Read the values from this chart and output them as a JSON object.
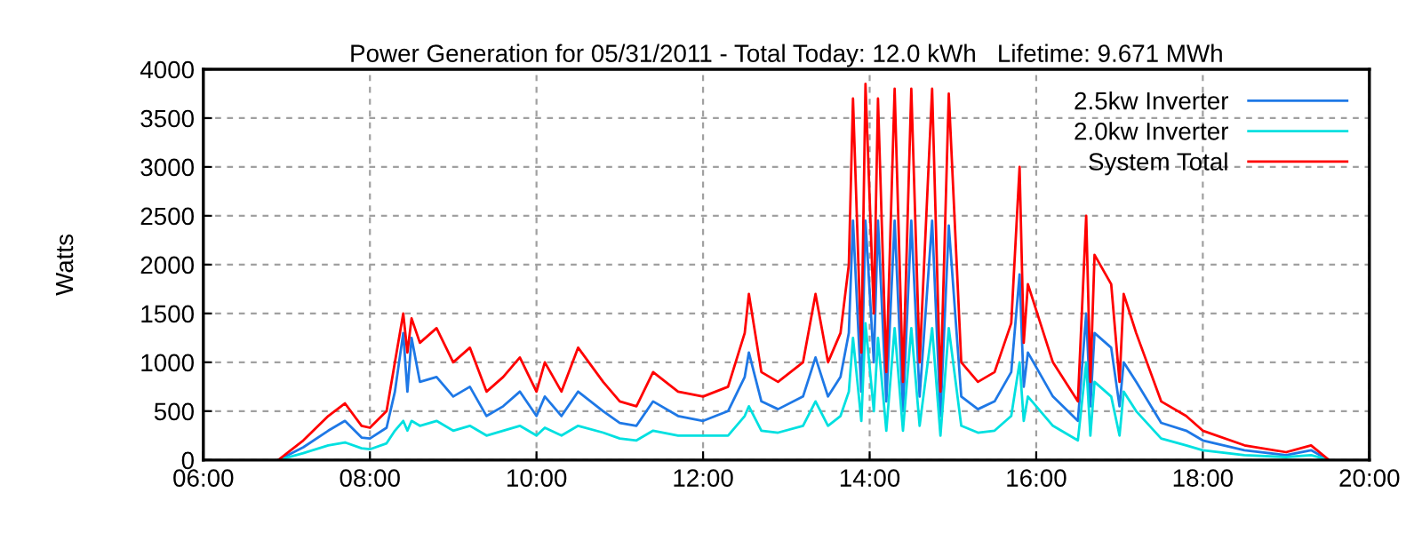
{
  "chart_data": {
    "type": "line",
    "title": "Power Generation for 05/31/2011 - Total Today: 12.0 kWh   Lifetime: 9.671 MWh",
    "ylabel": "Watts",
    "x": [
      6.9,
      7.2,
      7.5,
      7.7,
      7.9,
      8.0,
      8.2,
      8.3,
      8.4,
      8.45,
      8.5,
      8.6,
      8.8,
      9.0,
      9.2,
      9.4,
      9.6,
      9.8,
      10.0,
      10.1,
      10.3,
      10.5,
      10.8,
      11.0,
      11.2,
      11.4,
      11.7,
      12.0,
      12.3,
      12.5,
      12.55,
      12.7,
      12.9,
      13.2,
      13.35,
      13.5,
      13.65,
      13.75,
      13.8,
      13.9,
      13.95,
      14.05,
      14.1,
      14.2,
      14.3,
      14.4,
      14.5,
      14.6,
      14.75,
      14.85,
      14.95,
      15.1,
      15.3,
      15.5,
      15.7,
      15.8,
      15.85,
      15.9,
      16.2,
      16.5,
      16.6,
      16.65,
      16.7,
      16.9,
      17.0,
      17.05,
      17.2,
      17.5,
      17.8,
      18.0,
      18.5,
      19.0,
      19.3,
      19.5
    ],
    "series": [
      {
        "name": "2.5kw Inverter",
        "color": "#1e78e6",
        "values": [
          0,
          130,
          300,
          400,
          230,
          220,
          330,
          700,
          1300,
          700,
          1250,
          800,
          850,
          650,
          750,
          450,
          550,
          700,
          450,
          650,
          450,
          700,
          500,
          380,
          350,
          600,
          450,
          400,
          500,
          850,
          1100,
          600,
          520,
          650,
          1050,
          650,
          850,
          1300,
          2450,
          700,
          2450,
          1000,
          2450,
          600,
          2450,
          500,
          2450,
          650,
          2450,
          450,
          2400,
          650,
          520,
          600,
          900,
          1900,
          750,
          1100,
          650,
          400,
          1500,
          550,
          1300,
          1150,
          550,
          1000,
          800,
          380,
          300,
          200,
          100,
          50,
          100,
          5
        ]
      },
      {
        "name": "2.0kw Inverter",
        "color": "#00e0e0",
        "values": [
          0,
          70,
          150,
          180,
          120,
          110,
          170,
          300,
          400,
          300,
          400,
          350,
          400,
          300,
          350,
          250,
          300,
          350,
          250,
          330,
          250,
          350,
          280,
          220,
          200,
          300,
          250,
          250,
          250,
          450,
          550,
          300,
          280,
          350,
          600,
          350,
          450,
          700,
          1250,
          400,
          1400,
          500,
          1250,
          300,
          1350,
          300,
          1350,
          350,
          1350,
          250,
          1350,
          350,
          280,
          300,
          450,
          1000,
          400,
          650,
          350,
          200,
          1000,
          250,
          800,
          650,
          250,
          700,
          500,
          220,
          150,
          100,
          50,
          30,
          50,
          5
        ]
      },
      {
        "name": "System Total",
        "color": "#ff0000",
        "values": [
          0,
          200,
          450,
          580,
          350,
          330,
          500,
          1000,
          1500,
          1100,
          1450,
          1200,
          1350,
          1000,
          1150,
          700,
          850,
          1050,
          700,
          1000,
          700,
          1150,
          800,
          600,
          550,
          900,
          700,
          650,
          750,
          1300,
          1700,
          900,
          800,
          1000,
          1700,
          1000,
          1300,
          2000,
          3700,
          1100,
          3850,
          1500,
          3700,
          900,
          3800,
          800,
          3800,
          1000,
          3800,
          700,
          3750,
          1000,
          800,
          900,
          1400,
          3000,
          1200,
          1800,
          1000,
          600,
          2500,
          800,
          2100,
          1800,
          800,
          1700,
          1300,
          600,
          450,
          300,
          150,
          80,
          150,
          10
        ]
      }
    ],
    "xlim": [
      6,
      20
    ],
    "xticks": [
      {
        "value": 6,
        "label": "06:00"
      },
      {
        "value": 8,
        "label": "08:00"
      },
      {
        "value": 10,
        "label": "10:00"
      },
      {
        "value": 12,
        "label": "12:00"
      },
      {
        "value": 14,
        "label": "14:00"
      },
      {
        "value": 16,
        "label": "16:00"
      },
      {
        "value": 18,
        "label": "18:00"
      },
      {
        "value": 20,
        "label": "20:00"
      }
    ],
    "ylim": [
      0,
      4000
    ],
    "yticks": [
      0,
      500,
      1000,
      1500,
      2000,
      2500,
      3000,
      3500,
      4000
    ],
    "grid": true,
    "legend": "top right",
    "line_style": "solid",
    "marker": "none"
  }
}
